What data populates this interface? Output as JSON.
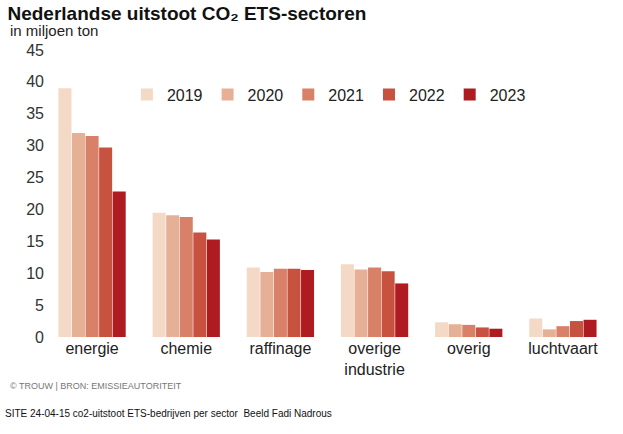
{
  "chart_data": {
    "type": "bar",
    "title": "Nederlandse uitstoot CO₂ ETS-sectoren",
    "subtitle": "in miljoen ton",
    "annotations": [
      "© TROUW | BRON: EMISSIEAUTORITEIT",
      "SITE 24-04-15 co2-uitstoot ETS-bedrijven per sector  Beeld Fadi Nadrous"
    ],
    "categories": [
      "energie",
      "chemie",
      "raffinage",
      "overige industrie",
      "overig",
      "luchtvaart"
    ],
    "series": [
      {
        "name": "2019",
        "color": "#f4d9c6",
        "values": [
          39,
          19.5,
          10.9,
          11.4,
          2.3,
          2.9
        ]
      },
      {
        "name": "2020",
        "color": "#e6b096",
        "values": [
          32,
          19.1,
          10.2,
          10.6,
          2.0,
          1.2
        ]
      },
      {
        "name": "2021",
        "color": "#d98068",
        "values": [
          31.5,
          18.8,
          10.7,
          10.9,
          1.9,
          1.7
        ]
      },
      {
        "name": "2022",
        "color": "#c7523f",
        "values": [
          29.7,
          16.4,
          10.7,
          10.3,
          1.5,
          2.5
        ]
      },
      {
        "name": "2023",
        "color": "#ae1c22",
        "values": [
          22.8,
          15.3,
          10.5,
          8.4,
          1.3,
          2.7
        ]
      }
    ],
    "ylim": [
      0,
      45
    ],
    "yticks": [
      0,
      5,
      10,
      15,
      20,
      25,
      30,
      35,
      40,
      45
    ],
    "grid": false,
    "legend": "top-right"
  }
}
